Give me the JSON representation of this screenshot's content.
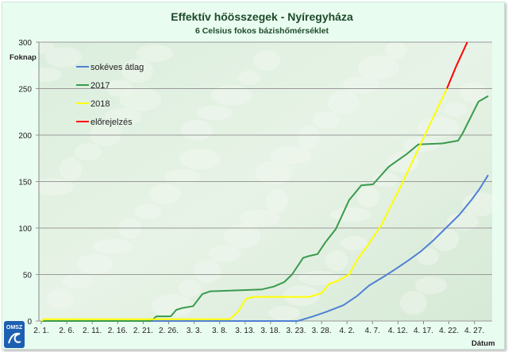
{
  "chart_data": {
    "type": "line",
    "title": "Effektív hőösszegek - Nyíregyháza",
    "subtitle": "6 Celsius fokos bázishőmérséklet",
    "xlabel": "Dátum",
    "ylabel": "Foknap",
    "ylim": [
      0,
      300
    ],
    "xlim_days_from_feb1": [
      0,
      88.5
    ],
    "yticks": [
      0,
      50,
      100,
      150,
      200,
      250,
      300
    ],
    "xtick_labels": [
      "2. 1.",
      "2. 6.",
      "2. 11.",
      "2. 16.",
      "2. 21.",
      "2. 26.",
      "3. 3.",
      "3. 8.",
      "3. 13.",
      "3. 18.",
      "3. 23.",
      "3. 28.",
      "4. 2.",
      "4. 7.",
      "4. 12.",
      "4. 17.",
      "4. 22.",
      "4. 27."
    ],
    "grid": true,
    "legend_position": "top-left",
    "series": [
      {
        "name": "sokéves átlag",
        "color": "#4f81d4",
        "points": [
          [
            0,
            0
          ],
          [
            50.3,
            0
          ],
          [
            53.4,
            5
          ],
          [
            56,
            10
          ],
          [
            59.3,
            17
          ],
          [
            62,
            27
          ],
          [
            64.3,
            38
          ],
          [
            67,
            47
          ],
          [
            69.3,
            55
          ],
          [
            72,
            65
          ],
          [
            74.5,
            75
          ],
          [
            77,
            87
          ],
          [
            79.4,
            100
          ],
          [
            82,
            114
          ],
          [
            84.4,
            130
          ],
          [
            86,
            142
          ],
          [
            87.7,
            157
          ]
        ]
      },
      {
        "name": "2017",
        "color": "#3a9a4e",
        "points": [
          [
            0,
            0
          ],
          [
            21.5,
            0
          ],
          [
            22.6,
            5
          ],
          [
            25.4,
            5
          ],
          [
            26.5,
            12
          ],
          [
            27.7,
            14
          ],
          [
            29.8,
            16
          ],
          [
            31.6,
            29
          ],
          [
            33.2,
            32
          ],
          [
            38.6,
            33
          ],
          [
            43.3,
            34
          ],
          [
            45.6,
            37
          ],
          [
            47.7,
            42
          ],
          [
            49.2,
            50
          ],
          [
            51.4,
            68
          ],
          [
            52.6,
            70
          ],
          [
            54.2,
            72
          ],
          [
            55.8,
            85
          ],
          [
            57.8,
            99
          ],
          [
            60.4,
            130
          ],
          [
            62.8,
            146
          ],
          [
            65.1,
            147
          ],
          [
            68.2,
            166
          ],
          [
            71.8,
            180
          ],
          [
            74,
            190
          ],
          [
            78.7,
            191
          ],
          [
            81.8,
            194
          ],
          [
            82.7,
            202
          ],
          [
            85.8,
            236
          ],
          [
            87.7,
            242
          ]
        ]
      },
      {
        "name": "2018",
        "color": "#ffff00",
        "points": [
          [
            0,
            0
          ],
          [
            0.5,
            2
          ],
          [
            37,
            2
          ],
          [
            38.6,
            10
          ],
          [
            40.2,
            24
          ],
          [
            41.7,
            26
          ],
          [
            52.6,
            26
          ],
          [
            55,
            30
          ],
          [
            56.5,
            40
          ],
          [
            58.1,
            43
          ],
          [
            60.4,
            50
          ],
          [
            62,
            66
          ],
          [
            63.9,
            80
          ],
          [
            66.7,
            103
          ],
          [
            70.9,
            149
          ],
          [
            74.5,
            191
          ],
          [
            79.6,
            250
          ]
        ]
      },
      {
        "name": "előrejelzés",
        "color": "#ff0000",
        "points": [
          [
            79.6,
            250
          ],
          [
            81.5,
            275
          ],
          [
            83.6,
            300
          ]
        ]
      }
    ]
  },
  "logo": {
    "text": "OMSZ"
  }
}
